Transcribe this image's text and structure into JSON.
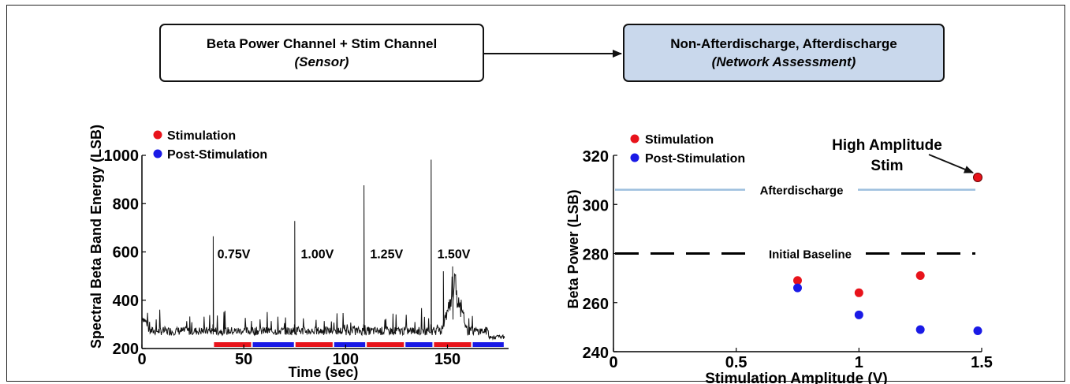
{
  "flow": {
    "sensor": {
      "title": "Beta Power Channel + Stim Channel",
      "subtitle": "(Sensor)"
    },
    "network": {
      "title": "Non-Afterdischarge, Afterdischarge",
      "subtitle": "(Network Assessment)"
    }
  },
  "colors": {
    "stim": "#e8131b",
    "post": "#1a1ae6",
    "afterdischarge": "#9dbfde",
    "baseline": "#000000",
    "network_box": "#c9d8ec"
  },
  "chart_data": [
    {
      "type": "line",
      "xlabel": "Time (sec)",
      "ylabel": "Spectral Beta Band Energy (LSB)",
      "xlim": [
        0,
        180
      ],
      "ylim": [
        200,
        1000
      ],
      "xticks": [
        0,
        50,
        100,
        150
      ],
      "yticks": [
        200,
        400,
        600,
        800,
        1000
      ],
      "legend": [
        {
          "label": "Stimulation",
          "color": "#e8131b"
        },
        {
          "label": "Post-Stimulation",
          "color": "#1a1ae6"
        }
      ],
      "legend_position": "top-left",
      "annotations": [
        {
          "text": "0.75V",
          "x": 37,
          "y": 600
        },
        {
          "text": "1.00V",
          "x": 78,
          "y": 600
        },
        {
          "text": "1.25V",
          "x": 112,
          "y": 600
        },
        {
          "text": "1.50V",
          "x": 145,
          "y": 600
        }
      ],
      "spikes": [
        {
          "x": 35,
          "y": 665
        },
        {
          "x": 75,
          "y": 728
        },
        {
          "x": 109,
          "y": 876
        },
        {
          "x": 142,
          "y": 982
        }
      ],
      "burst": {
        "x_start": 147,
        "x_end": 160,
        "peak": 540
      },
      "baseline_level": 275,
      "segments": [
        {
          "phase": "Stimulation",
          "start": 35,
          "end": 54
        },
        {
          "phase": "Post-Stimulation",
          "start": 54,
          "end": 75
        },
        {
          "phase": "Stimulation",
          "start": 75,
          "end": 94
        },
        {
          "phase": "Post-Stimulation",
          "start": 94,
          "end": 110
        },
        {
          "phase": "Stimulation",
          "start": 110,
          "end": 129
        },
        {
          "phase": "Post-Stimulation",
          "start": 129,
          "end": 143
        },
        {
          "phase": "Stimulation",
          "start": 143,
          "end": 162
        },
        {
          "phase": "Post-Stimulation",
          "start": 162,
          "end": 178
        }
      ]
    },
    {
      "type": "scatter",
      "xlabel": "Stimulation Amplitude (V)",
      "ylabel": "Beta Power (LSB)",
      "xlim": [
        0,
        1.5
      ],
      "ylim": [
        240,
        320
      ],
      "xticks": [
        0,
        0.5,
        1,
        1.5
      ],
      "xtick_labels": [
        "0",
        "0.5",
        "1",
        "1.5"
      ],
      "yticks": [
        240,
        260,
        280,
        300,
        320
      ],
      "legend": [
        {
          "label": "Stimulation",
          "color": "#e8131b"
        },
        {
          "label": "Post-Stimulation",
          "color": "#1a1ae6"
        }
      ],
      "legend_position": "top-left",
      "series": [
        {
          "name": "Stimulation",
          "color": "#e8131b",
          "points": [
            {
              "x": 0.75,
              "y": 269
            },
            {
              "x": 1.0,
              "y": 264
            },
            {
              "x": 1.25,
              "y": 271
            },
            {
              "x": 1.5,
              "y": 311
            }
          ]
        },
        {
          "name": "Post-Stimulation",
          "color": "#1a1ae6",
          "points": [
            {
              "x": 0.75,
              "y": 266
            },
            {
              "x": 1.0,
              "y": 255
            },
            {
              "x": 1.25,
              "y": 249
            },
            {
              "x": 1.5,
              "y": 248.5
            }
          ]
        }
      ],
      "reference_lines": [
        {
          "label": "Afterdischarge",
          "y": 306,
          "style": "solid",
          "color": "#9dbfde"
        },
        {
          "label": "Initial Baseline",
          "y": 280,
          "style": "dashed",
          "color": "#000000"
        }
      ],
      "callout": {
        "text_line1": "High Amplitude",
        "text_line2": "Stim",
        "target_x": 1.5,
        "target_y": 311
      }
    }
  ]
}
